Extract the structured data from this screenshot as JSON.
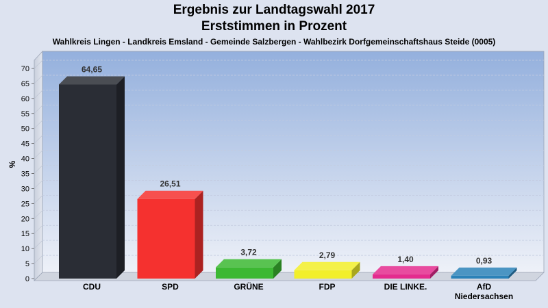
{
  "chart_data": {
    "type": "bar",
    "title": "Ergebnis zur Landtagswahl 2017",
    "subtitle": "Erststimmen in Prozent",
    "caption": "Wahlkreis Lingen - Landkreis Emsland - Gemeinde Salzbergen - Wahlbezirk Dorfgemeinschaftshaus Steide (0005)",
    "ylabel": "%",
    "xlabel": "",
    "ylim": [
      0,
      70
    ],
    "yticks": [
      0,
      5,
      10,
      15,
      20,
      25,
      30,
      35,
      40,
      45,
      50,
      55,
      60,
      65,
      70
    ],
    "grid": true,
    "categories": [
      "CDU",
      "SPD",
      "GRÜNE",
      "FDP",
      "DIE LINKE.",
      "AfD Niedersachsen"
    ],
    "category_lines": [
      [
        "CDU"
      ],
      [
        "SPD"
      ],
      [
        "GRÜNE"
      ],
      [
        "FDP"
      ],
      [
        "DIE LINKE."
      ],
      [
        "AfD",
        "Niedersachsen"
      ]
    ],
    "values": [
      64.65,
      26.51,
      3.72,
      2.79,
      1.4,
      0.93
    ],
    "value_labels": [
      "64,65",
      "26,51",
      "3,72",
      "2,79",
      "1,40",
      "0,93"
    ],
    "colors": [
      "#2a2d35",
      "#f5312f",
      "#3cb832",
      "#f2ef2a",
      "#e42b8e",
      "#2b82b8"
    ]
  }
}
